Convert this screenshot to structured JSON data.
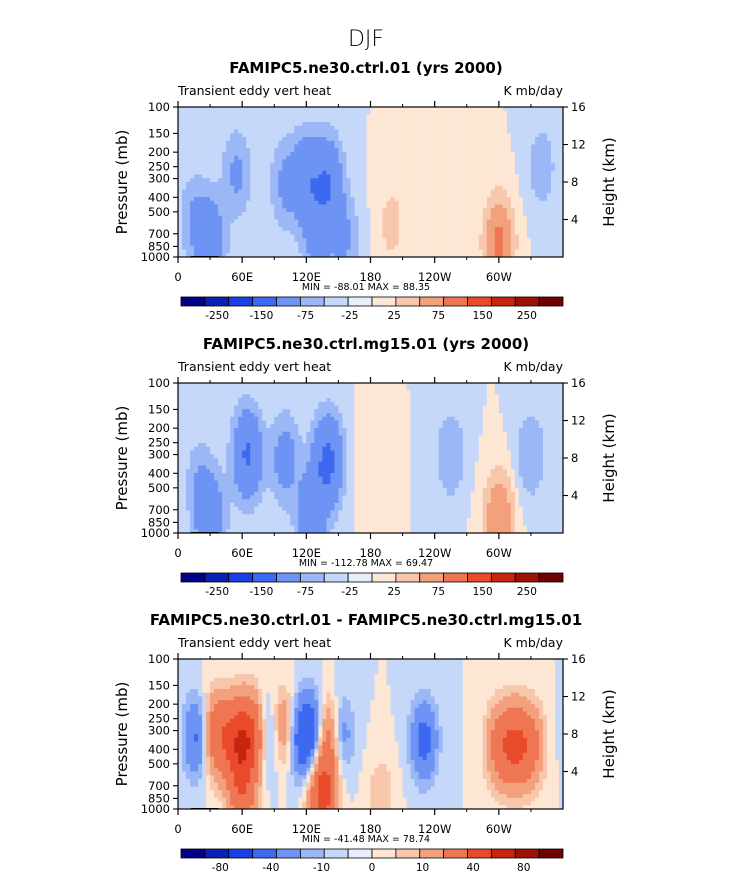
{
  "page_title": "DJF",
  "colors": {
    "palette": [
      "#00008b",
      "#0a1fb4",
      "#1b3fe6",
      "#3d68f0",
      "#6d94f4",
      "#9bb7f6",
      "#c6d8f9",
      "#e6eefc",
      "#fde6d3",
      "#f8c6aa",
      "#f3a07c",
      "#ee7652",
      "#e84a2a",
      "#c8240f",
      "#9e1206",
      "#6e0000"
    ]
  },
  "chart_data": [
    {
      "type": "heatmap",
      "id": "ctrl",
      "title": "FAMIPC5.ne30.ctrl.01 (yrs 2000)",
      "left_label": "Transient eddy vert heat",
      "right_label": "K mb/day",
      "ylabel": "Pressure (mb)",
      "ylabel_right": "Height (km)",
      "x_ticks": [
        "0",
        "60E",
        "120E",
        "180",
        "120W",
        "60W"
      ],
      "y_ticks": [
        "100",
        "150",
        "200",
        "250",
        "300",
        "400",
        "500",
        "700",
        "850",
        "1000"
      ],
      "y_ticks_right": [
        "4",
        "8",
        "12",
        "16"
      ],
      "ylim": [
        1000,
        100
      ],
      "y_log_scale": true,
      "min_max_text": "MIN = -88.01   MAX =  88.35",
      "colorbar_labels": [
        "-250",
        "-150",
        "-75",
        "-25",
        "25",
        "75",
        "150",
        "250"
      ],
      "levels": [
        -250,
        -200,
        -150,
        -100,
        -75,
        -50,
        -25,
        -10,
        0,
        10,
        25,
        50,
        75,
        100,
        150,
        200,
        250
      ],
      "features": [
        {
          "lon": 30,
          "p": 800,
          "value": -60
        },
        {
          "lon": 55,
          "p": 280,
          "value": -30
        },
        {
          "lon": 120,
          "p": 300,
          "value": -60
        },
        {
          "lon": 140,
          "p": 320,
          "value": -70
        },
        {
          "lon": 100,
          "p": 330,
          "value": -30
        },
        {
          "lon": 130,
          "p": 720,
          "value": -40
        },
        {
          "lon": 155,
          "p": 740,
          "value": -30
        },
        {
          "lon": 15,
          "p": 550,
          "value": -25
        },
        {
          "lon": 300,
          "p": 800,
          "value": 60
        },
        {
          "lon": 340,
          "p": 250,
          "value": -20
        },
        {
          "lon": 200,
          "p": 600,
          "value": 15
        }
      ]
    },
    {
      "type": "heatmap",
      "id": "mg15",
      "title": "FAMIPC5.ne30.ctrl.mg15.01 (yrs 2000)",
      "left_label": "Transient eddy vert heat",
      "right_label": "K mb/day",
      "ylabel": "Pressure (mb)",
      "ylabel_right": "Height (km)",
      "x_ticks": [
        "0",
        "60E",
        "120E",
        "180",
        "120W",
        "60W"
      ],
      "y_ticks": [
        "100",
        "150",
        "200",
        "250",
        "300",
        "400",
        "500",
        "700",
        "850",
        "1000"
      ],
      "y_ticks_right": [
        "4",
        "8",
        "12",
        "16"
      ],
      "ylim": [
        1000,
        100
      ],
      "y_log_scale": true,
      "min_max_text": "MIN = -112.78   MAX =  69.47",
      "colorbar_labels": [
        "-250",
        "-150",
        "-75",
        "-25",
        "25",
        "75",
        "150",
        "250"
      ],
      "levels": [
        -250,
        -200,
        -150,
        -100,
        -75,
        -50,
        -25,
        -10,
        0,
        10,
        25,
        50,
        75,
        100,
        150,
        200,
        250
      ],
      "features": [
        {
          "lon": 30,
          "p": 800,
          "value": -60
        },
        {
          "lon": 65,
          "p": 300,
          "value": -80
        },
        {
          "lon": 100,
          "p": 320,
          "value": -40
        },
        {
          "lon": 140,
          "p": 330,
          "value": -90
        },
        {
          "lon": 125,
          "p": 760,
          "value": -60
        },
        {
          "lon": 20,
          "p": 450,
          "value": -20
        },
        {
          "lon": 300,
          "p": 800,
          "value": 50
        },
        {
          "lon": 255,
          "p": 300,
          "value": -25
        },
        {
          "lon": 330,
          "p": 300,
          "value": -25
        },
        {
          "lon": 180,
          "p": 350,
          "value": 10
        }
      ]
    },
    {
      "type": "heatmap",
      "id": "diff",
      "title": "FAMIPC5.ne30.ctrl.01 - FAMIPC5.ne30.ctrl.mg15.01",
      "left_label": "Transient eddy vert heat",
      "right_label": "K mb/day",
      "ylabel": "Pressure (mb)",
      "ylabel_right": "Height (km)",
      "x_ticks": [
        "0",
        "60E",
        "120E",
        "180",
        "120W",
        "60W"
      ],
      "y_ticks": [
        "100",
        "150",
        "200",
        "250",
        "300",
        "400",
        "500",
        "700",
        "850",
        "1000"
      ],
      "y_ticks_right": [
        "4",
        "8",
        "12",
        "16"
      ],
      "ylim": [
        1000,
        100
      ],
      "y_log_scale": true,
      "min_max_text": "MIN = -41.48   MAX =  78.74",
      "colorbar_labels": [
        "-80",
        "-40",
        "-10",
        "0",
        "10",
        "40",
        "80"
      ],
      "levels": [
        -100,
        -80,
        -60,
        -40,
        -20,
        -10,
        -5,
        0,
        5,
        10,
        20,
        40,
        60,
        80,
        100
      ],
      "features": [
        {
          "lon": 18,
          "p": 330,
          "value": -25
        },
        {
          "lon": 35,
          "p": 320,
          "value": 35
        },
        {
          "lon": 55,
          "p": 350,
          "value": 45
        },
        {
          "lon": 70,
          "p": 330,
          "value": 40
        },
        {
          "lon": 85,
          "p": 330,
          "value": -20
        },
        {
          "lon": 100,
          "p": 300,
          "value": 30
        },
        {
          "lon": 112,
          "p": 330,
          "value": -30
        },
        {
          "lon": 128,
          "p": 320,
          "value": -35
        },
        {
          "lon": 140,
          "p": 330,
          "value": 45
        },
        {
          "lon": 150,
          "p": 320,
          "value": -25
        },
        {
          "lon": 135,
          "p": 820,
          "value": 50
        },
        {
          "lon": 60,
          "p": 800,
          "value": 30
        },
        {
          "lon": 230,
          "p": 350,
          "value": -25
        },
        {
          "lon": 300,
          "p": 380,
          "value": 25
        },
        {
          "lon": 315,
          "p": 380,
          "value": 35
        },
        {
          "lon": 330,
          "p": 380,
          "value": 25
        },
        {
          "lon": 190,
          "p": 850,
          "value": 10
        }
      ]
    }
  ]
}
